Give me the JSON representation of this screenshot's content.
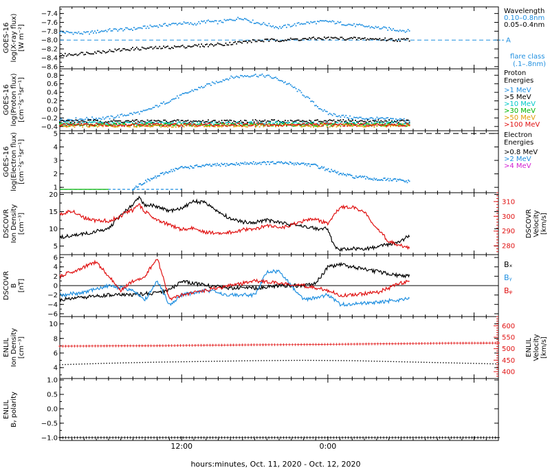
{
  "chart_data": {
    "type": "line",
    "x_axis": {
      "title": "hours:minutes, Oct. 11, 2020 - Oct. 12, 2020",
      "ticks": [
        {
          "label": "12:00",
          "hour": 12
        },
        {
          "label": "0:00",
          "hour": 24
        }
      ],
      "range_hours": [
        2,
        38
      ],
      "data_end_hour": 30.7
    },
    "panels": [
      {
        "id": "xray",
        "ylabel": [
          "GOES-16",
          "log(X-ray flux)",
          "[W m⁻²]"
        ],
        "ylim": [
          -8.65,
          -7.25
        ],
        "ticks": [
          -8.6,
          -8.4,
          -8.2,
          -8.0,
          -7.8,
          -7.6,
          -7.4
        ],
        "tick_labels": [
          "−8.6",
          "−8.4",
          "−8.2",
          "−8.0",
          "−7.8",
          "−7.6",
          "−7.4"
        ],
        "legend_title": "Wavelength",
        "series": [
          {
            "name": "0.10–0.8nm",
            "color": "#1f8fe0",
            "style": "dots",
            "x": [
              2,
              4,
              6,
              8,
              10,
              12,
              13,
              14,
              15,
              16,
              17,
              18,
              19,
              20,
              22,
              24,
              26,
              28,
              30,
              30.7
            ],
            "values": [
              -7.82,
              -7.85,
              -7.78,
              -7.75,
              -7.68,
              -7.62,
              -7.64,
              -7.58,
              -7.6,
              -7.55,
              -7.5,
              -7.6,
              -7.65,
              -7.72,
              -7.62,
              -7.58,
              -7.66,
              -7.72,
              -7.78,
              -7.8
            ]
          },
          {
            "name": "0.05–0.4nm",
            "color": "#000000",
            "style": "dots",
            "x": [
              2,
              4,
              6,
              8,
              10,
              12,
              14,
              16,
              18,
              20,
              22,
              24,
              26,
              28,
              30,
              30.7
            ],
            "values": [
              -8.35,
              -8.3,
              -8.25,
              -8.2,
              -8.18,
              -8.15,
              -8.12,
              -8.08,
              -8.02,
              -8.0,
              -7.98,
              -7.96,
              -7.97,
              -7.98,
              -8.0,
              -7.99
            ]
          }
        ],
        "threshold": {
          "value": -8.0,
          "label": "A",
          "color": "#1f8fe0"
        },
        "note": [
          "flare class",
          "(.1–.8nm)"
        ]
      },
      {
        "id": "proton",
        "ylabel": [
          "GOES-16",
          "log(Proton flux)",
          "[cm⁻²s⁻¹sr⁻¹]"
        ],
        "ylim": [
          -0.5,
          0.95
        ],
        "ticks": [
          -0.4,
          -0.2,
          0.0,
          0.2,
          0.4,
          0.6,
          0.8
        ],
        "tick_labels": [
          "−0.4",
          "−0.2",
          "0.0",
          "0.2",
          "0.4",
          "0.6",
          "0.8"
        ],
        "legend_title": "Proton Energies",
        "series": [
          {
            "name": ">1 MeV",
            "color": "#1f8fe0",
            "style": "dots",
            "x": [
              2,
              6,
              9,
              11,
              13,
              15,
              16,
              17,
              18,
              19,
              20,
              21,
              22,
              23,
              24,
              26,
              30.7
            ],
            "values": [
              -0.25,
              -0.2,
              -0.05,
              0.2,
              0.45,
              0.65,
              0.74,
              0.78,
              0.8,
              0.78,
              0.7,
              0.55,
              0.35,
              0.1,
              -0.1,
              -0.2,
              -0.25
            ]
          },
          {
            "name": ">5 MeV",
            "color": "#000000",
            "style": "dots",
            "x": [
              2,
              30.7
            ],
            "values": [
              -0.28,
              -0.28
            ]
          },
          {
            "name": ">10 MeV",
            "color": "#00c8c8",
            "style": "dots",
            "x": [
              2,
              30.7
            ],
            "values": [
              -0.33,
              -0.33
            ]
          },
          {
            "name": ">30 MeV",
            "color": "#00b400",
            "style": "dots",
            "x": [
              2,
              30.7
            ],
            "values": [
              -0.36,
              -0.36
            ]
          },
          {
            "name": ">50 MeV",
            "color": "#e09a00",
            "style": "dots",
            "x": [
              2,
              30.7
            ],
            "values": [
              -0.38,
              -0.38
            ]
          },
          {
            "name": ">100 MeV",
            "color": "#e01010",
            "style": "dots",
            "x": [
              2,
              30.7
            ],
            "values": [
              -0.36,
              -0.36
            ]
          }
        ]
      },
      {
        "id": "electron",
        "ylabel": [
          "GOES-16",
          "log(Electron flux)",
          "[cm⁻²s⁻¹sr⁻¹]"
        ],
        "ylim": [
          0.6,
          5.2
        ],
        "ticks": [
          1,
          2,
          3,
          4,
          5
        ],
        "tick_labels": [
          "1",
          "2",
          "3",
          "4",
          "5"
        ],
        "legend_title": "Electron Energies",
        "series": [
          {
            "name": ">0.8 MeV",
            "color": "#000000",
            "style": "none",
            "x": [],
            "values": []
          },
          {
            "name": ">2 MeV",
            "color": "#1f8fe0",
            "style": "dots",
            "x": [
              8,
              9,
              10,
              11,
              12,
              14,
              16,
              18,
              20,
              22,
              23,
              24,
              25,
              26,
              28,
              30,
              30.7
            ],
            "values": [
              0.9,
              1.4,
              1.8,
              2.2,
              2.45,
              2.6,
              2.7,
              2.8,
              2.8,
              2.75,
              2.6,
              2.3,
              2.0,
              1.8,
              1.6,
              1.5,
              1.4
            ]
          },
          {
            "name": ">4 MeV",
            "color": "#d21ed2",
            "style": "none",
            "x": [],
            "values": []
          }
        ],
        "extra_lines": [
          {
            "color": "#000000",
            "dash": "8,5",
            "x": [
              2,
              38
            ],
            "values": [
              5.0,
              5.0
            ]
          },
          {
            "color": "#1f8fe0",
            "dash": "4,3",
            "x": [
              2,
              12
            ],
            "values": [
              0.85,
              0.85
            ]
          },
          {
            "color": "#00b400",
            "dash": "",
            "x": [
              2,
              6
            ],
            "values": [
              0.85,
              0.85
            ]
          }
        ]
      },
      {
        "id": "dscovr_density",
        "ylabel": [
          "DSCOVR",
          "Ion Density",
          "[cm⁻³]"
        ],
        "ylim": [
          2.5,
          20.5
        ],
        "ticks": [
          5,
          10,
          15,
          20
        ],
        "tick_labels": [
          "5",
          "10",
          "15",
          "20"
        ],
        "ylabel_right": [
          "DSCOVR",
          "Velocity",
          "[km/s]"
        ],
        "ylim_right": [
          274,
          316
        ],
        "ticks_right": [
          280,
          290,
          300,
          310
        ],
        "tick_labels_right": [
          "280",
          "290",
          "300",
          "310"
        ],
        "series": [
          {
            "name": "Ion Density",
            "color": "#000000",
            "style": "line",
            "axis": "left",
            "x": [
              2,
              4,
              6,
              7,
              8,
              8.5,
              9,
              10,
              11,
              12,
              13,
              14,
              15,
              16,
              17,
              18,
              19,
              20,
              21,
              22,
              23,
              24,
              24.5,
              25,
              26,
              27,
              28,
              29,
              30,
              30.7
            ],
            "values": [
              7.5,
              8.5,
              10,
              14,
              17,
              19,
              17,
              16.5,
              15,
              16,
              18,
              17.5,
              15,
              13,
              12,
              12,
              12.5,
              12,
              11,
              11,
              10,
              10,
              5,
              4,
              4.3,
              4,
              4.8,
              5.5,
              6.5,
              8
            ]
          },
          {
            "name": "Velocity",
            "color": "#e01010",
            "style": "line",
            "axis": "right",
            "x": [
              2,
              3,
              4,
              5,
              6,
              7,
              7.5,
              8,
              8.5,
              9,
              10,
              11,
              12,
              13,
              14,
              15,
              16,
              17,
              18,
              19,
              20,
              21,
              22,
              23,
              24,
              25,
              26,
              27,
              28,
              29,
              30,
              30.7
            ],
            "values": [
              301,
              304,
              299,
              297,
              297,
              300,
              303,
              304,
              308,
              303,
              298,
              294,
              291,
              292,
              289,
              289,
              289,
              291,
              291,
              294,
              292,
              294,
              297,
              298,
              295,
              306,
              306,
              303,
              292,
              283,
              280,
              279
            ]
          }
        ]
      },
      {
        "id": "dscovr_b",
        "ylabel": [
          "DSCOVR",
          "B",
          "[nT]"
        ],
        "ylim": [
          -6.6,
          6.6
        ],
        "ticks": [
          -6,
          -4,
          -2,
          0,
          2,
          4,
          6
        ],
        "tick_labels": [
          "−6",
          "−4",
          "−2",
          "0",
          "2",
          "4",
          "6"
        ],
        "zero_line": true,
        "series": [
          {
            "name": "Bₓ",
            "color": "#000000",
            "style": "line",
            "x": [
              2,
              4,
              6,
              8,
              10,
              11,
              12,
              14,
              16,
              18,
              20,
              22,
              23,
              24,
              25,
              26,
              28,
              30,
              30.7
            ],
            "values": [
              -3,
              -2.5,
              -2,
              -2,
              -1.5,
              -1,
              1,
              0,
              -0.5,
              -0.5,
              0,
              0,
              0.5,
              4,
              4.5,
              4,
              3,
              2,
              2
            ]
          },
          {
            "name": "Bᵧ",
            "color": "#1f8fe0",
            "style": "line",
            "x": [
              2,
              4,
              6,
              8,
              9,
              10,
              11,
              12,
              14,
              16,
              18,
              19,
              20,
              22,
              24,
              25,
              26,
              28,
              30,
              30.7
            ],
            "values": [
              -2,
              -1.5,
              0,
              -1,
              -3,
              1,
              -4,
              -2,
              -1,
              -2,
              -2,
              3,
              3,
              -3,
              -2,
              -4,
              -4,
              -3.5,
              -3,
              -2.5
            ]
          },
          {
            "name": "Bᵩ",
            "color": "#e01010",
            "style": "line",
            "x": [
              2,
              4,
              5,
              6,
              7,
              8,
              9,
              10,
              11,
              12,
              14,
              16,
              18,
              20,
              22,
              24,
              25,
              26,
              28,
              30,
              30.7
            ],
            "values": [
              2,
              4,
              5,
              2,
              -1,
              1,
              2,
              6,
              -3,
              -2,
              -1,
              0,
              1,
              0.5,
              0,
              -1,
              -2,
              -2,
              -1.5,
              0.5,
              1
            ]
          }
        ]
      },
      {
        "id": "enlil_density",
        "ylabel": [
          "ENLIL",
          "Ion Density",
          "[cm⁻³]"
        ],
        "ylim": [
          2.5,
          11.0
        ],
        "ticks": [
          4,
          6,
          8,
          10
        ],
        "tick_labels": [
          "4",
          "6",
          "8",
          "10"
        ],
        "ylabel_right": [
          "ENLIL",
          "Velocity",
          "[km/s]"
        ],
        "ylim_right": [
          370,
          640
        ],
        "ticks_right": [
          400,
          450,
          500,
          550,
          600
        ],
        "tick_labels_right": [
          "400",
          "450",
          "500",
          "550",
          "600"
        ],
        "series": [
          {
            "name": "Ion Density",
            "color": "#000000",
            "style": "dotted",
            "axis": "left",
            "x": [
              2,
              6,
              10,
              14,
              18,
              22,
              26,
              30,
              34,
              38
            ],
            "values": [
              4.4,
              4.6,
              4.75,
              4.85,
              4.95,
              5.0,
              4.95,
              4.8,
              4.65,
              4.5
            ]
          },
          {
            "name": "Velocity",
            "color": "#e01010",
            "style": "plus",
            "axis": "right",
            "x": [
              2,
              6,
              10,
              14,
              18,
              22,
              26,
              30,
              34,
              38
            ],
            "values": [
              511,
              512,
              513,
              515,
              517,
              518,
              520,
              522,
              524,
              525
            ]
          }
        ]
      },
      {
        "id": "enlil_polarity",
        "ylabel": [
          "ENLIL",
          "Bᵧ polarity"
        ],
        "ylim": [
          -1.1,
          1.05
        ],
        "ticks": [
          -1.0,
          -0.5,
          0.0,
          0.5,
          1.0
        ],
        "tick_labels": [
          "−1.0",
          "−0.5",
          "0.0",
          "0.5",
          "1.0"
        ],
        "series": [
          {
            "name": "polarity",
            "color": "#000000",
            "style": "plus",
            "x": [
              2,
              38
            ],
            "values": [
              -1.0,
              -1.0
            ]
          }
        ]
      }
    ]
  }
}
